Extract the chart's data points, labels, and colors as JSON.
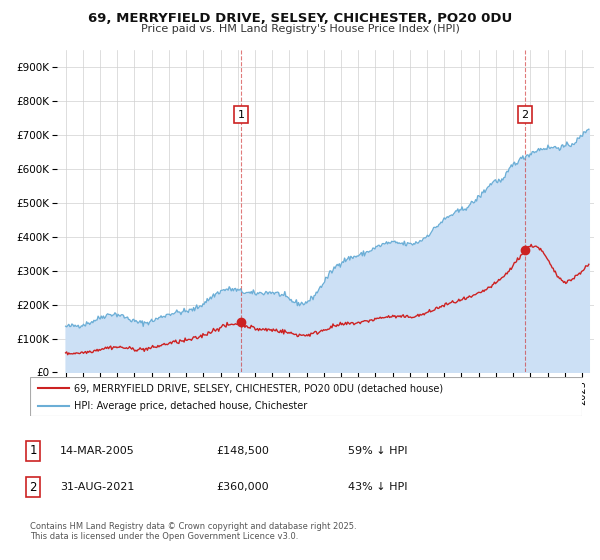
{
  "title_line1": "69, MERRYFIELD DRIVE, SELSEY, CHICHESTER, PO20 0DU",
  "title_line2": "Price paid vs. HM Land Registry's House Price Index (HPI)",
  "ylim": [
    0,
    950000
  ],
  "yticks": [
    0,
    100000,
    200000,
    300000,
    400000,
    500000,
    600000,
    700000,
    800000,
    900000
  ],
  "ytick_labels": [
    "£0",
    "£100K",
    "£200K",
    "£300K",
    "£400K",
    "£500K",
    "£600K",
    "£700K",
    "£800K",
    "£900K"
  ],
  "xlim_start": 1994.5,
  "xlim_end": 2025.7,
  "hpi_fill_color": "#cce0f5",
  "hpi_line_color": "#6baed6",
  "price_color": "#cc2222",
  "marker1_x": 2005.2,
  "marker1_y": 148500,
  "marker2_x": 2021.67,
  "marker2_y": 360000,
  "legend_label1": "69, MERRYFIELD DRIVE, SELSEY, CHICHESTER, PO20 0DU (detached house)",
  "legend_label2": "HPI: Average price, detached house, Chichester",
  "marker1_date": "14-MAR-2005",
  "marker1_price": "£148,500",
  "marker1_hpi": "59% ↓ HPI",
  "marker2_date": "31-AUG-2021",
  "marker2_price": "£360,000",
  "marker2_hpi": "43% ↓ HPI",
  "footer_line1": "Contains HM Land Registry data © Crown copyright and database right 2025.",
  "footer_line2": "This data is licensed under the Open Government Licence v3.0.",
  "background_color": "#ffffff",
  "grid_color": "#d0d0d0"
}
